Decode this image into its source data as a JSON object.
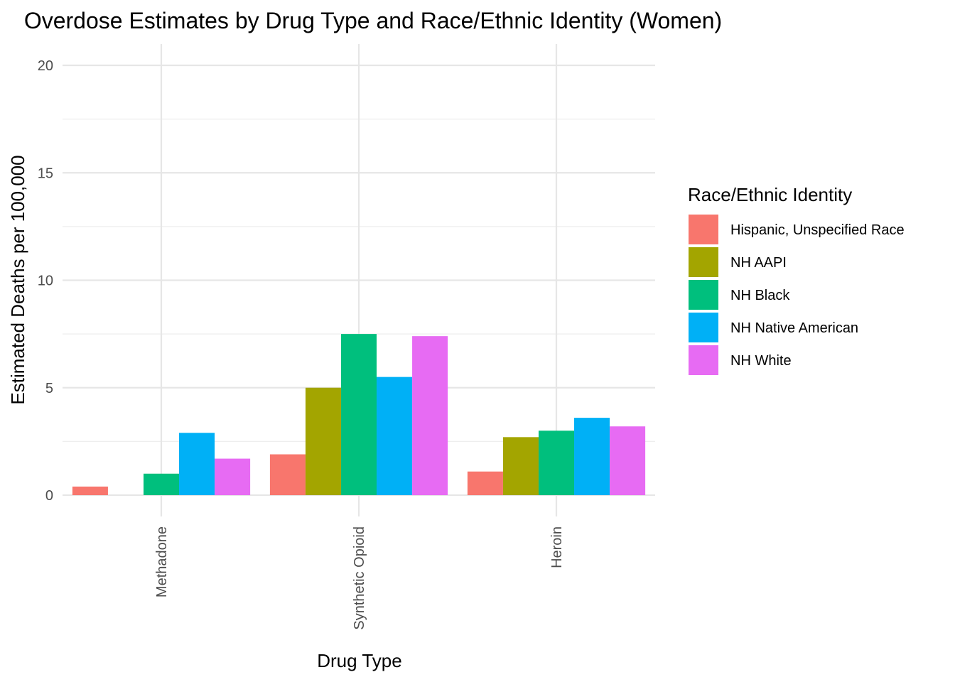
{
  "chart_data": {
    "type": "bar",
    "title": "Overdose Estimates by Drug Type and Race/Ethnic Identity (Women)",
    "xlabel": "Drug Type",
    "ylabel": "Estimated Deaths per 100,000",
    "categories": [
      "Methadone",
      "Synthetic Opioid",
      "Heroin"
    ],
    "ylim": [
      0,
      20
    ],
    "yticks": [
      0,
      5,
      10,
      15,
      20
    ],
    "grid": true,
    "legend": {
      "title": "Race/Ethnic Identity",
      "placement": "right"
    },
    "series": [
      {
        "name": "Hispanic, Unspecified Race",
        "color": "#F8766D",
        "values": [
          0.4,
          1.9,
          1.1
        ]
      },
      {
        "name": "NH AAPI",
        "color": "#A3A500",
        "values": [
          0,
          5.0,
          2.7
        ]
      },
      {
        "name": "NH Black",
        "color": "#00BF7D",
        "values": [
          1.0,
          7.5,
          3.0
        ]
      },
      {
        "name": "NH Native American",
        "color": "#00B0F6",
        "values": [
          2.9,
          5.5,
          3.6
        ]
      },
      {
        "name": "NH White",
        "color": "#E76BF3",
        "values": [
          1.7,
          7.4,
          3.2
        ]
      }
    ]
  }
}
